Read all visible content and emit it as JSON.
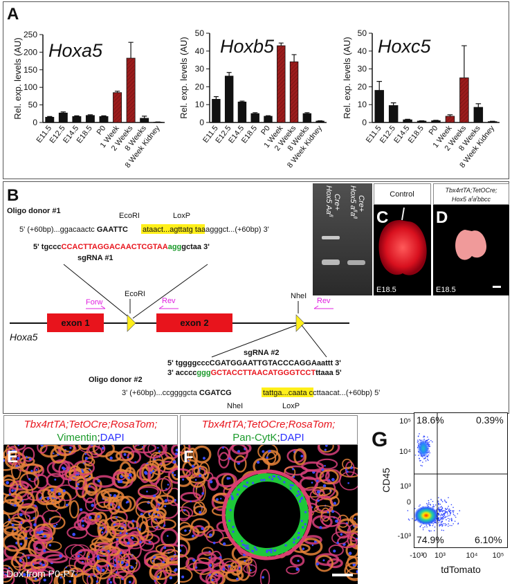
{
  "panel_labels": [
    "A",
    "B",
    "C",
    "D",
    "E",
    "F",
    "G"
  ],
  "chart_data": [
    {
      "type": "bar",
      "title": "Hoxa5",
      "y_axis_label": "Rel. exp. levels (AU)",
      "categories": [
        "E11.5",
        "E12.5",
        "E14.5",
        "E18.5",
        "P0",
        "1 Week",
        "2 Weeks",
        "8 Weeks",
        "8 Week Kidney"
      ],
      "values": [
        15,
        27,
        17,
        20,
        17,
        85,
        183,
        12,
        1
      ],
      "errors": [
        2,
        3,
        2,
        2,
        2,
        4,
        45,
        6,
        0.5
      ],
      "colors": [
        "#111111",
        "#111111",
        "#111111",
        "#111111",
        "#111111",
        "#9b1c1c",
        "#9b1c1c",
        "#111111",
        "#111111"
      ],
      "ylim": [
        0,
        250
      ],
      "yticks": [
        0,
        50,
        100,
        150,
        200,
        250
      ]
    },
    {
      "type": "bar",
      "title": "Hoxb5",
      "y_axis_label": "Rel. exp. levels (AU)",
      "categories": [
        "E11.5",
        "E12.5",
        "E14.5",
        "E18.5",
        "P0",
        "1 Week",
        "2 Weeks",
        "8 Weeks",
        "8 Week Kidney"
      ],
      "values": [
        13,
        26,
        11.5,
        5,
        3.5,
        43,
        34,
        5,
        0.8
      ],
      "errors": [
        1.5,
        2,
        0.5,
        0.5,
        0.3,
        1.5,
        4,
        0.5,
        0.2
      ],
      "colors": [
        "#111111",
        "#111111",
        "#111111",
        "#111111",
        "#111111",
        "#9b1c1c",
        "#9b1c1c",
        "#111111",
        "#111111"
      ],
      "ylim": [
        0,
        50
      ],
      "yticks": [
        0,
        10,
        20,
        30,
        40,
        50
      ]
    },
    {
      "type": "bar",
      "title": "Hoxc5",
      "y_axis_label": "Rel. exp. levels (AU)",
      "categories": [
        "E11.5",
        "E12.5",
        "E14.5",
        "E18.5",
        "P0",
        "1 Week",
        "2 Weeks",
        "8 Weeks",
        "8 Week Kidney"
      ],
      "values": [
        18,
        9.5,
        1.5,
        0.8,
        1,
        3.5,
        25,
        8.5,
        0.5
      ],
      "errors": [
        5,
        1.5,
        0.3,
        0.2,
        0.2,
        0.8,
        18,
        2,
        0.2
      ],
      "colors": [
        "#111111",
        "#111111",
        "#111111",
        "#111111",
        "#111111",
        "#9b1c1c",
        "#9b1c1c",
        "#111111",
        "#111111"
      ],
      "ylim": [
        0,
        50
      ],
      "yticks": [
        0,
        10,
        20,
        30,
        40,
        50
      ]
    }
  ],
  "panel_b": {
    "oligo_donor_1": "Oligo donor #1",
    "ecori_top": "EcoRI",
    "loxp_top": "LoxP",
    "donor1_seq": [
      "5' (+60bp)...ggacaactc ",
      "GAATTC",
      "ataact...agttatg",
      " taaagggct...(+60bp) 3'"
    ],
    "sgrna1_seq": [
      "5' tgccc",
      "CCACTTAGGACAACTCGTAA",
      "agg",
      "gctaa 3'"
    ],
    "sgrna1_label": "sgRNA #1",
    "gene": {
      "name": "Hoxa5",
      "exon1": "exon 1",
      "exon2": "exon 2",
      "forw": "Forw",
      "rev1": "Rev",
      "rev2": "Rev",
      "ecori": "EcoRI",
      "nhei": "NheI"
    },
    "sgrna2_label": "sgRNA #2",
    "sgrna2_top": "5' tggggcccCGATGGAATTGTACCCAGGAaattt 3'",
    "sgrna2_bottom": [
      "3' acccc",
      "ggg",
      "GCTACCTTAACATGGGTCCT",
      "ttaaa 5'"
    ],
    "oligo_donor_2": "Oligo donor #2",
    "donor2_seq": [
      "3' (+60bp)...ccggggcta ",
      "CGATCG",
      "tattga...caata",
      " ccttaacat...(+60bp) 5'"
    ],
    "nhei_bottom": "NheI",
    "loxp_bottom": "LoxP"
  },
  "gel": {
    "lane1": [
      "Hox5 Aa",
      "fl",
      "Cre+"
    ],
    "lane2": [
      "Hox5 a",
      "fl",
      "a",
      "fl",
      "Cre+"
    ]
  },
  "panel_c": {
    "header": "Control",
    "stage": "E18.5"
  },
  "panel_d": {
    "header_line1": "Tbx4rtTA;TetOCre;",
    "header_line2": [
      "Hox5 a",
      "f",
      "a",
      "f",
      "bbcc"
    ],
    "stage": "E18.5"
  },
  "panel_e": {
    "genotype": "Tbx4rtTA;TetOCre;RosaTom;",
    "stains": [
      "Vimentin",
      ";",
      "DAPI"
    ],
    "note": "Dox from P0-P7"
  },
  "panel_f": {
    "genotype": "Tbx4rtTA;TetOCre;RosaTom;",
    "stains": [
      "Pan-CytK",
      ";",
      "DAPI"
    ]
  },
  "panel_g": {
    "quadrants": [
      "18.6%",
      "0.39%",
      "74.9%",
      "6.10%"
    ],
    "y_axis_label": "CD45",
    "x_axis_label": "tdTomato",
    "yticks": [
      "10⁵",
      "10⁴",
      "10³",
      "0",
      "-10³"
    ],
    "xticks": [
      "-10³",
      "0",
      "10³",
      "10⁴",
      "10⁵"
    ]
  }
}
